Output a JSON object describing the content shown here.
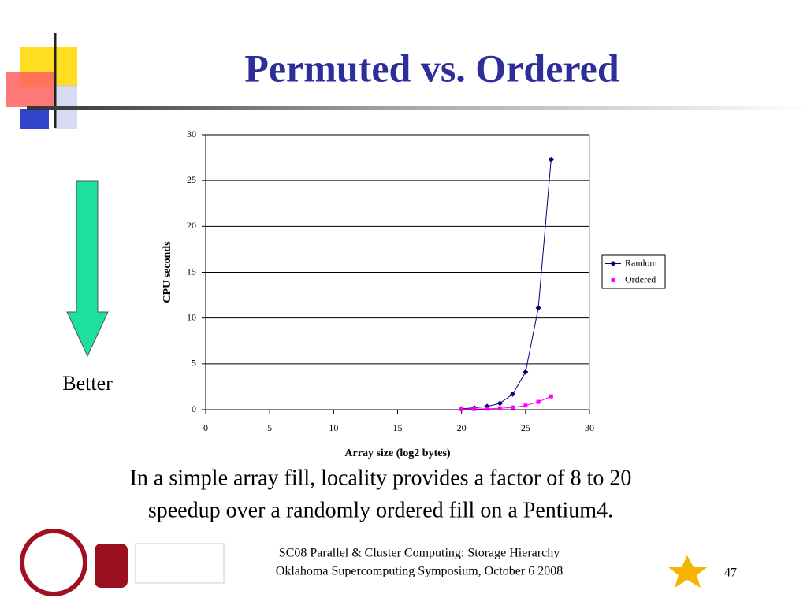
{
  "slide": {
    "title": "Permuted vs. Ordered",
    "arrow_label": "Better",
    "caption": [
      "In a simple array fill, locality provides a factor of 8 to 20",
      "speedup over a randomly ordered fill on a Pentium4."
    ],
    "footer": [
      "SC08 Parallel & Cluster Computing: Storage Hierarchy",
      "Oklahoma Supercomputing Symposium, October 6 2008"
    ],
    "page_number": "47"
  },
  "chart_data": {
    "type": "line",
    "x_label": "Array size (log2 bytes)",
    "y_label": "CPU seconds",
    "x": [
      20,
      21,
      22,
      23,
      24,
      25,
      26,
      27
    ],
    "series": [
      {
        "name": "Random",
        "color": "#000080",
        "marker": "diamond",
        "values": [
          0.1,
          0.2,
          0.35,
          0.7,
          1.7,
          4.1,
          11.1,
          27.3
        ]
      },
      {
        "name": "Ordered",
        "color": "#ff00ff",
        "marker": "square",
        "values": [
          0.05,
          0.07,
          0.1,
          0.15,
          0.25,
          0.45,
          0.85,
          1.45
        ]
      }
    ],
    "xlim": [
      0,
      30
    ],
    "xticks": [
      0,
      5,
      10,
      15,
      20,
      25,
      30
    ],
    "ylim": [
      0,
      30
    ],
    "yticks": [
      0,
      5,
      10,
      15,
      20,
      25,
      30
    ],
    "grid": true,
    "legend": "right"
  }
}
